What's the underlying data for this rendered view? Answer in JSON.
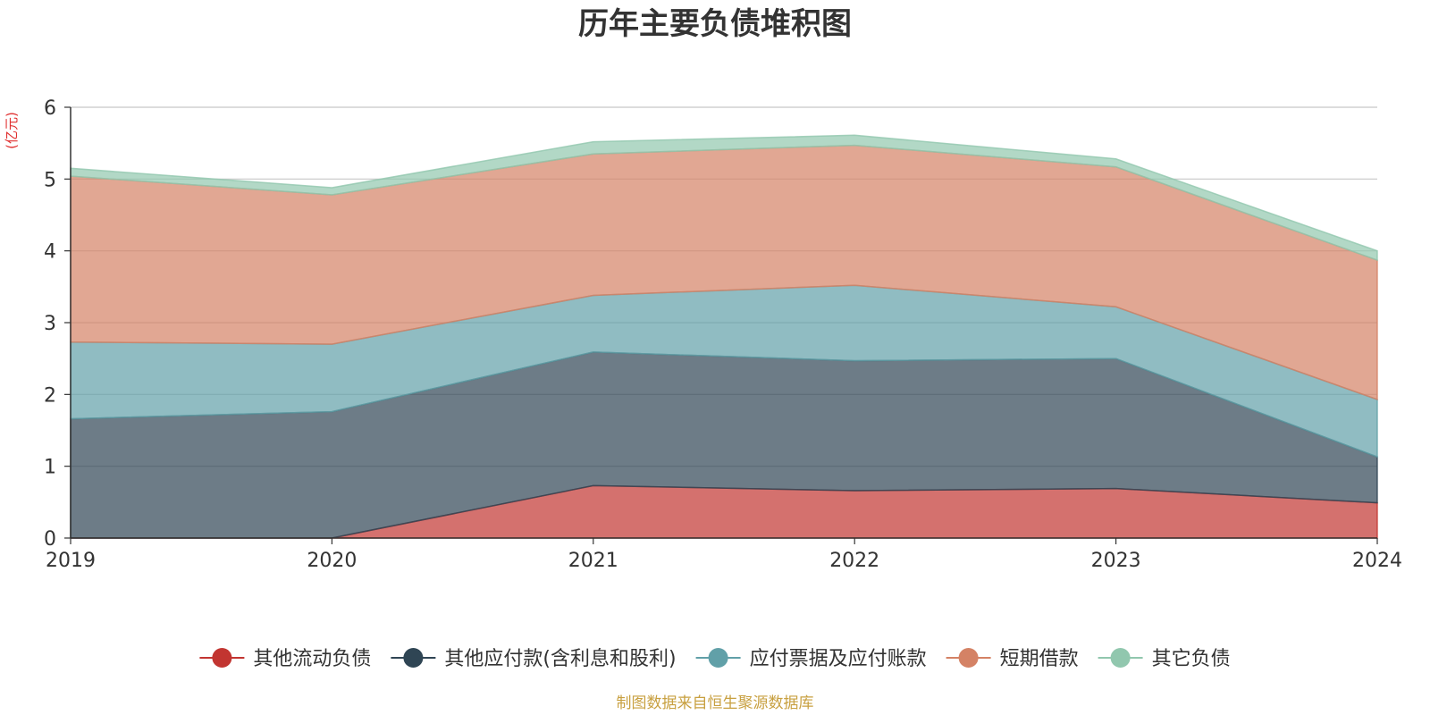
{
  "chart_data": {
    "type": "area",
    "stacked": true,
    "title": "历年主要负债堆积图",
    "unit_label": "(亿元)",
    "x": [
      "2019",
      "2020",
      "2021",
      "2022",
      "2023",
      "2024"
    ],
    "ylim": [
      0,
      6
    ],
    "yticks": [
      "0",
      "1",
      "2",
      "3",
      "4",
      "5",
      "6"
    ],
    "grid": true,
    "legend_position": "bottom",
    "series": [
      {
        "name": "其他流动负债",
        "color": "#c23531",
        "values": [
          0,
          0,
          0.73,
          0.66,
          0.69,
          0.49
        ]
      },
      {
        "name": "其他应付款(含利息和股利)",
        "color": "#2f4554",
        "values": [
          1.66,
          1.76,
          1.86,
          1.81,
          1.81,
          0.64
        ]
      },
      {
        "name": "应付票据及应付账款",
        "color": "#61a0a8",
        "values": [
          1.07,
          0.94,
          0.79,
          1.05,
          0.72,
          0.8
        ]
      },
      {
        "name": "短期借款",
        "color": "#d48265",
        "values": [
          2.31,
          2.08,
          1.97,
          1.95,
          1.95,
          1.94
        ]
      },
      {
        "name": "其它负债",
        "color": "#91c7ae",
        "values": [
          0.11,
          0.1,
          0.17,
          0.14,
          0.11,
          0.13
        ]
      }
    ]
  },
  "footer": {
    "source": "制图数据来自恒生聚源数据库"
  }
}
